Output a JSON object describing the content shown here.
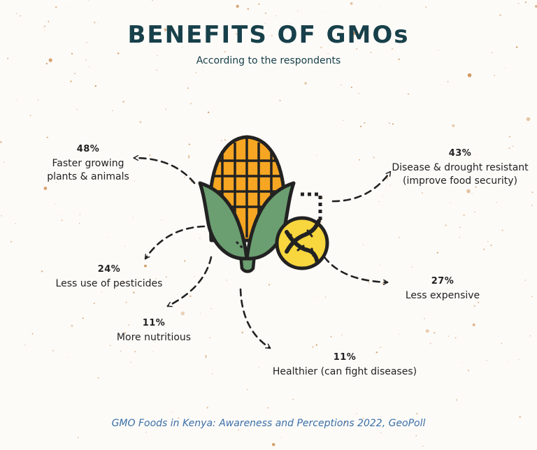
{
  "title": "BENEFITS OF GMOs",
  "subtitle": "According to the respondents",
  "benefits": [
    {
      "percent": "48%",
      "line1": "Faster growing",
      "line2": "plants &  animals"
    },
    {
      "percent": "43%",
      "line1": "Disease & drought resistant",
      "line2": "(improve food security)"
    },
    {
      "percent": "24%",
      "line1": "Less use of pesticides",
      "line2": ""
    },
    {
      "percent": "27%",
      "line1": "Less expensive",
      "line2": ""
    },
    {
      "percent": "11%",
      "line1": "More nutritious",
      "line2": ""
    },
    {
      "percent": "11%",
      "line1": "Healthier (can fight diseases)",
      "line2": ""
    }
  ],
  "source": "GMO Foods in Kenya: Awareness and Perceptions 2022, GeoPoll",
  "colors": {
    "title": "#17404a",
    "corn_kernel": "#f6a623",
    "husk": "#6b9e70",
    "badge": "#f7d63e",
    "source": "#3a6fa8",
    "speckle": "#c98a4a"
  },
  "icons": {
    "center": "corn-cob-icon",
    "badge": "dna-icon"
  }
}
